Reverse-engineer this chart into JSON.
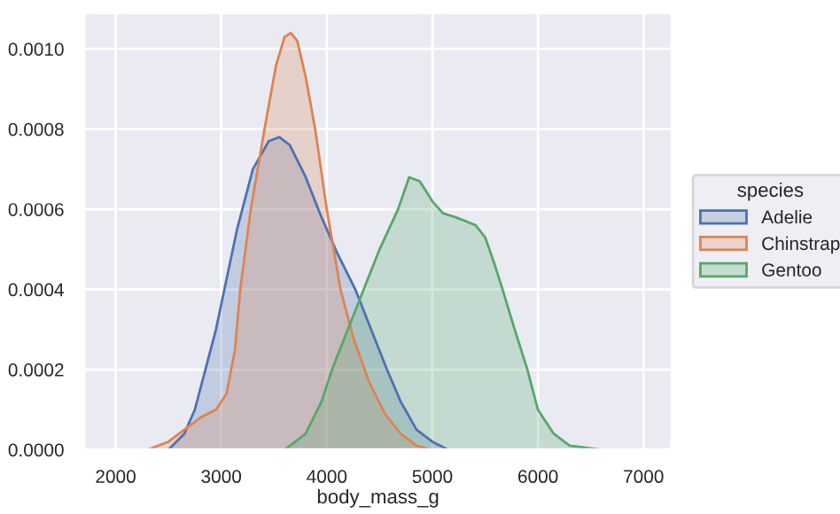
{
  "chart_data": {
    "type": "area",
    "xlabel": "body_mass_g",
    "legend_title": "species",
    "legend": "right",
    "grid": true,
    "xlim": [
      1700,
      7270
    ],
    "ylim": [
      0,
      0.00109
    ],
    "xticks": [
      2000,
      3000,
      4000,
      5000,
      6000,
      7000
    ],
    "yticks": [
      {
        "value": 0,
        "label": "0.0000"
      },
      {
        "value": 0.0002,
        "label": "0.0002"
      },
      {
        "value": 0.0004,
        "label": "0.0004"
      },
      {
        "value": 0.0006,
        "label": "0.0006"
      },
      {
        "value": 0.0008,
        "label": "0.0008"
      },
      {
        "value": 0.001,
        "label": "0.0010"
      }
    ],
    "series": [
      {
        "name": "Adelie",
        "color": "#4c72b0",
        "x": [
          2500,
          2650,
          2750,
          2850,
          2950,
          3030,
          3150,
          3300,
          3450,
          3550,
          3650,
          3800,
          3950,
          4100,
          4270,
          4420,
          4570,
          4700,
          4850,
          5000,
          5150
        ],
        "values": [
          0,
          4e-05,
          0.0001,
          0.0002,
          0.0003,
          0.0004,
          0.00055,
          0.0007,
          0.00077,
          0.00078,
          0.00076,
          0.00068,
          0.00058,
          0.00049,
          0.0004,
          0.0003,
          0.0002,
          0.00012,
          5e-05,
          2e-05,
          0
        ]
      },
      {
        "name": "Chinstrap",
        "color": "#dd8452",
        "x": [
          2300,
          2500,
          2650,
          2800,
          2950,
          3050,
          3130,
          3180,
          3280,
          3410,
          3520,
          3600,
          3660,
          3720,
          3800,
          3890,
          4000,
          4130,
          4250,
          4400,
          4550,
          4700,
          4850,
          5000
        ],
        "values": [
          0,
          2e-05,
          5e-05,
          8e-05,
          0.0001,
          0.00014,
          0.00025,
          0.0004,
          0.0006,
          0.0008,
          0.00096,
          0.00103,
          0.00104,
          0.00102,
          0.00093,
          0.0008,
          0.0006,
          0.0004,
          0.00028,
          0.00017,
          9e-05,
          4e-05,
          1e-05,
          0
        ]
      },
      {
        "name": "Gentoo",
        "color": "#55a868",
        "x": [
          3600,
          3800,
          3950,
          4050,
          4200,
          4350,
          4500,
          4675,
          4780,
          4880,
          5000,
          5100,
          5220,
          5320,
          5410,
          5500,
          5580,
          5665,
          5780,
          5900,
          6000,
          6150,
          6300,
          6600
        ],
        "values": [
          0,
          4e-05,
          0.00012,
          0.0002,
          0.0003,
          0.0004,
          0.0005,
          0.0006,
          0.00068,
          0.00067,
          0.00062,
          0.00059,
          0.00058,
          0.00057,
          0.00056,
          0.00053,
          0.00047,
          0.0004,
          0.0003,
          0.0002,
          0.0001,
          4e-05,
          1e-05,
          0
        ]
      }
    ]
  }
}
